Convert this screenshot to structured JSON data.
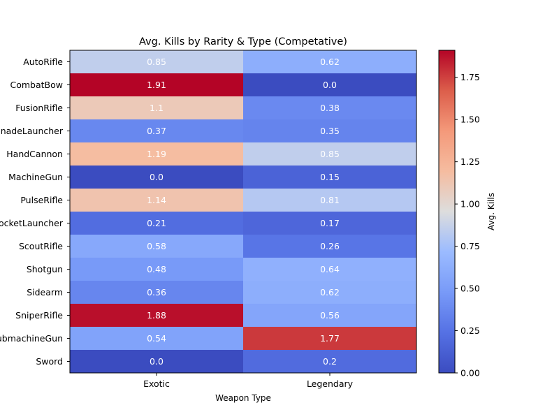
{
  "chart_data": {
    "type": "heatmap",
    "title": "Avg. Kills by Rarity & Type (Competative)",
    "xlabel": "Weapon Type",
    "ylabel": "",
    "x_categories": [
      "Exotic",
      "Legendary"
    ],
    "y_categories": [
      "AutoRifle",
      "CombatBow",
      "FusionRifle",
      "GrenadeLauncher",
      "HandCannon",
      "MachineGun",
      "PulseRifle",
      "RocketLauncher",
      "ScoutRifle",
      "Shotgun",
      "Sidearm",
      "SniperRifle",
      "SubmachineGun",
      "Sword"
    ],
    "values": [
      [
        0.85,
        0.62
      ],
      [
        1.91,
        0.0
      ],
      [
        1.1,
        0.38
      ],
      [
        0.37,
        0.35
      ],
      [
        1.19,
        0.85
      ],
      [
        0.0,
        0.15
      ],
      [
        1.14,
        0.81
      ],
      [
        0.21,
        0.17
      ],
      [
        0.58,
        0.26
      ],
      [
        0.48,
        0.64
      ],
      [
        0.36,
        0.62
      ],
      [
        1.88,
        0.56
      ],
      [
        0.54,
        1.77
      ],
      [
        0.0,
        0.2
      ]
    ],
    "value_labels": [
      [
        "0.85",
        "0.62"
      ],
      [
        "1.91",
        "0.0"
      ],
      [
        "1.1",
        "0.38"
      ],
      [
        "0.37",
        "0.35"
      ],
      [
        "1.19",
        "0.85"
      ],
      [
        "0.0",
        "0.15"
      ],
      [
        "1.14",
        "0.81"
      ],
      [
        "0.21",
        "0.17"
      ],
      [
        "0.58",
        "0.26"
      ],
      [
        "0.48",
        "0.64"
      ],
      [
        "0.36",
        "0.62"
      ],
      [
        "1.88",
        "0.56"
      ],
      [
        "0.54",
        "1.77"
      ],
      [
        "0.0",
        "0.2"
      ]
    ],
    "colormap": "coolwarm",
    "vmin": 0.0,
    "vmax": 1.91,
    "colorbar": {
      "label": "Avg. Kills",
      "ticks": [
        0.0,
        0.25,
        0.5,
        0.75,
        1.0,
        1.25,
        1.5,
        1.75
      ],
      "tick_labels": [
        "0.00",
        "0.25",
        "0.50",
        "0.75",
        "1.00",
        "1.25",
        "1.50",
        "1.75"
      ]
    },
    "grid": false
  }
}
